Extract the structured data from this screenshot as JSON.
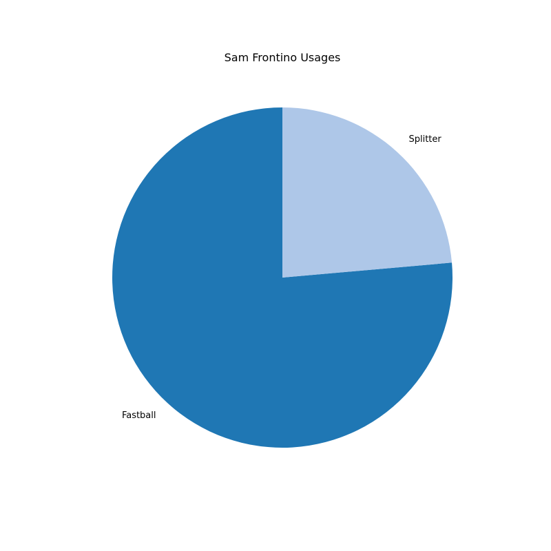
{
  "chart_data": {
    "type": "pie",
    "title": "Sam Frontino Usages",
    "start_angle_deg": 90,
    "direction": "counterclockwise",
    "slices": [
      {
        "label": "Fastball",
        "value": 76.4,
        "color": "#1f77b4"
      },
      {
        "label": "Splitter",
        "value": 23.6,
        "color": "#aec7e8"
      }
    ],
    "legend": "none"
  }
}
